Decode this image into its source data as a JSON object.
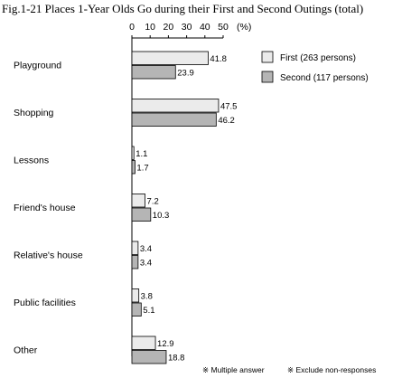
{
  "chart_data": {
    "type": "bar",
    "orientation": "horizontal",
    "title": "Fig.1-21 Places 1-Year Olds Go during their First and Second Outings (total)",
    "unit": "(%)",
    "xlim": [
      0,
      50
    ],
    "ticks": [
      "0",
      "10",
      "20",
      "30",
      "40",
      "50"
    ],
    "categories": [
      "Playground",
      "Shopping",
      "Lessons",
      "Friend's house",
      "Relative's house",
      "Public facilities",
      "Other"
    ],
    "series": [
      {
        "name": "First (263 persons)",
        "color": "#ebebeb",
        "values": [
          41.8,
          47.5,
          1.1,
          7.2,
          3.4,
          3.8,
          12.9
        ]
      },
      {
        "name": "Second (117 persons)",
        "color": "#b5b5b5",
        "values": [
          23.9,
          46.2,
          1.7,
          10.3,
          3.4,
          5.1,
          18.8
        ]
      }
    ],
    "value_labels": [
      [
        "41.8",
        "47.5",
        "1.1",
        "7.2",
        "3.4",
        "3.8",
        "12.9"
      ],
      [
        "23.9",
        "46.2",
        "1.7",
        "10.3",
        "3.4",
        "5.1",
        "18.8"
      ]
    ],
    "notes": [
      "※ Multiple answer",
      "※ Exclude non-responses"
    ],
    "grid": false,
    "legend_position": "top-right"
  }
}
